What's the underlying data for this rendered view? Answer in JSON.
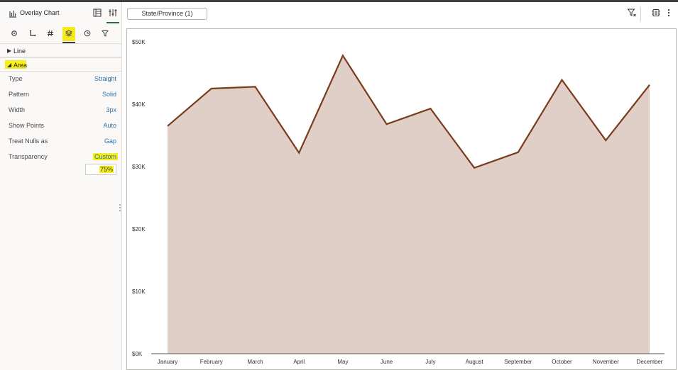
{
  "panel": {
    "title": "Overlay Chart",
    "title_icon": "bar-chart-icon",
    "header_buttons": [
      {
        "name": "data-layout-icon"
      },
      {
        "name": "properties-sliders-icon",
        "active": true
      }
    ],
    "tabs": [
      {
        "name": "general-gear-icon"
      },
      {
        "name": "axis-icon"
      },
      {
        "name": "number-format-hash-icon"
      },
      {
        "name": "layers-icon",
        "active": true
      },
      {
        "name": "clock-icon"
      },
      {
        "name": "filter-icon"
      }
    ],
    "sections": {
      "line": {
        "label": "Line",
        "expanded": false
      },
      "area": {
        "label": "Area",
        "expanded": true
      }
    },
    "properties": [
      {
        "name": "Type",
        "value": "Straight"
      },
      {
        "name": "Pattern",
        "value": "Solid"
      },
      {
        "name": "Width",
        "value": "3px"
      },
      {
        "name": "Show Points",
        "value": "Auto"
      },
      {
        "name": "Treat Nulls as",
        "value": "Gap"
      },
      {
        "name": "Transparency",
        "value": "Custom",
        "highlighted": true
      }
    ],
    "transparency_value": "75%",
    "highlight_color": "#f7ef1a"
  },
  "toolbar": {
    "filter_chip": "State/Province (1)",
    "icons": [
      "filter-funnel-icon",
      "settings-cog-icon",
      "more-vertical-icon"
    ]
  },
  "colors": {
    "line": "#7a3b1d",
    "area_fill": "#e0cfc7",
    "axis": "#555555",
    "accent_green": "#2b6a4a"
  },
  "chart_data": {
    "type": "area",
    "categories": [
      "January",
      "February",
      "March",
      "April",
      "May",
      "June",
      "July",
      "August",
      "September",
      "October",
      "November",
      "December"
    ],
    "values": [
      36500,
      42500,
      42800,
      32200,
      47800,
      36800,
      39300,
      29800,
      32300,
      43900,
      34200,
      43100
    ],
    "ylim": [
      0,
      50000
    ],
    "yticks": [
      "$0K",
      "$10K",
      "$20K",
      "$30K",
      "$40K",
      "$50K"
    ],
    "ytick_values": [
      0,
      10000,
      20000,
      30000,
      40000,
      50000
    ],
    "grid": false,
    "title": "",
    "xlabel": "",
    "ylabel": ""
  }
}
